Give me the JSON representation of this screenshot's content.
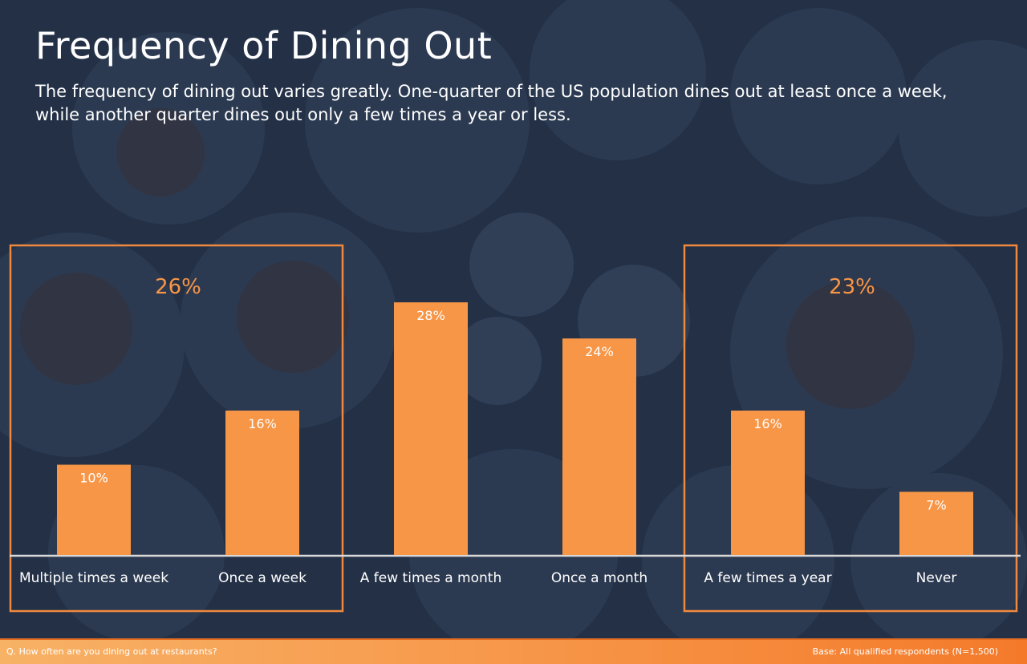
{
  "header": {
    "title": "Frequency of Dining Out",
    "subtitle": "The frequency of dining out varies greatly. One-quarter of the US population dines out at least once a week, while another quarter dines out only a few times a year or less."
  },
  "chart_data": {
    "type": "bar",
    "title": "",
    "xlabel": "",
    "ylabel": "",
    "ylim": [
      0,
      30
    ],
    "grid": false,
    "categories": [
      "Multiple times a week",
      "Once a week",
      "A few times a month",
      "Once a month",
      "A few times a year",
      "Never"
    ],
    "series": [
      {
        "values": [
          10,
          16,
          28,
          24,
          16,
          7
        ],
        "labels": [
          "10%",
          "16%",
          "28%",
          "24%",
          "16%",
          "7%"
        ]
      }
    ],
    "groups": [
      {
        "from": 0,
        "to": 1,
        "label": "26%"
      },
      {
        "from": 4,
        "to": 5,
        "label": "23%"
      }
    ],
    "colors": {
      "bar": "#f79646",
      "group_box": "#f0883e",
      "group_label": "#f79646",
      "baseline": "#d9d9d9"
    }
  },
  "footer": {
    "question": "Q. How often are you dining out at restaurants?",
    "base": "Base: All qualified respondents (N=1,500)"
  }
}
